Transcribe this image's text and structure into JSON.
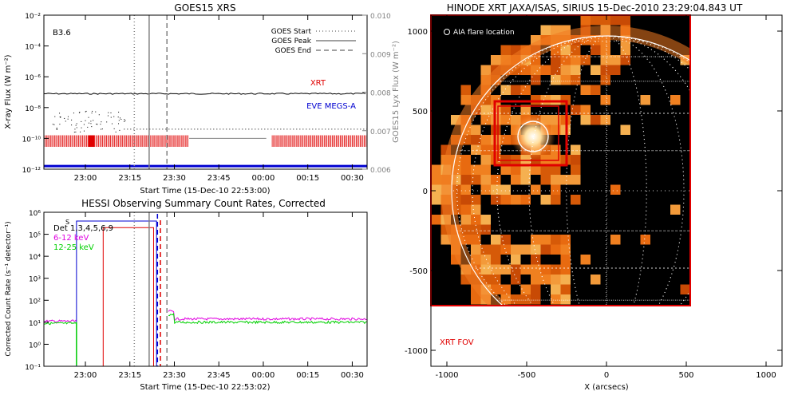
{
  "colors": {
    "axis": "#000000",
    "goes_line": "#808080",
    "xrt": "#e00000",
    "eve": "#0000d0",
    "magenta": "#e000e0",
    "green": "#00d000",
    "blue": "#0000d0",
    "dotgrid": "#ffffff"
  },
  "chart_data": [
    {
      "type": "line",
      "title": "GOES15 XRS",
      "xlabel": "Start Time (15-Dec-10 22:53:00)",
      "ylabel": "X-ray Flux (W m⁻²)",
      "y2label": "GOES15 Lyx Flux (W m⁻²)",
      "class_label": "B3.6",
      "x_ticks": [
        "23:00",
        "23:15",
        "23:30",
        "23:45",
        "00:00",
        "00:15",
        "00:30"
      ],
      "y_ticks": [
        "10⁻²",
        "10⁻⁴",
        "10⁻⁶",
        "10⁻⁸",
        "10⁻¹⁰",
        "10⁻¹²"
      ],
      "y2_ticks": [
        "0.010",
        "0.009",
        "0.008",
        "0.007",
        "0.006"
      ],
      "ylim_log": [
        -12,
        -2
      ],
      "y2lim": [
        0.006,
        0.01
      ],
      "xrange_minutes": [
        -7,
        102
      ],
      "legend": [
        {
          "label": "GOES Start",
          "style": "dotted"
        },
        {
          "label": "GOES Peak",
          "style": "solid"
        },
        {
          "label": "GOES End",
          "style": "dashed"
        }
      ],
      "markers": {
        "start": 23.5,
        "peak": 28.5,
        "end": 34.5
      },
      "series_labels": {
        "xrt": "XRT",
        "eve": "EVE MEGS-A"
      },
      "series": [
        {
          "name": "GOES long channel",
          "log_value": -7.1
        },
        {
          "name": "GOES short channel",
          "log_value": -9.4
        },
        {
          "name": "Lyx flux",
          "value": 0.0068
        },
        {
          "name": "EVE MEGS-A",
          "log_value": -11.8
        }
      ]
    },
    {
      "type": "line",
      "title": "HESSI Observing Summary Count Rates, Corrected",
      "xlabel": "Start Time (15-Dec-10 22:53:02)",
      "ylabel": "Corrected Count Rate (s⁻¹ detector⁻¹)",
      "x_ticks": [
        "23:00",
        "23:15",
        "23:30",
        "23:45",
        "00:00",
        "00:15",
        "00:30"
      ],
      "y_ticks": [
        "10⁶",
        "10⁵",
        "10⁴",
        "10³",
        "10²",
        "10¹",
        "10⁰",
        "10⁻¹"
      ],
      "ylim_log": [
        -1,
        6
      ],
      "xrange_minutes": [
        -7,
        102
      ],
      "legend": [
        {
          "label": "Det 1,3,4,5,6,9",
          "color": "black"
        },
        {
          "label": "6-12 keV",
          "color": "magenta"
        },
        {
          "label": "12-25 keV",
          "color": "green"
        }
      ],
      "state_flag": "S",
      "series": [
        {
          "name": "6-12 keV",
          "log_before": 1.05,
          "log_after": 1.15
        },
        {
          "name": "12-25 keV",
          "log_before": 0.95,
          "log_after": 1.0
        }
      ],
      "attenuator_box_log": 5.3,
      "saa_box_log": 5.6
    },
    {
      "type": "image",
      "title": "HINODE XRT JAXA/ISAS, SIRIUS 15-Dec-2010 23:29:04.843 UT",
      "xlabel": "X (arcsecs)",
      "x_ticks": [
        "-1000",
        "-500",
        "0",
        "500",
        "1000"
      ],
      "y_ticks": [
        "1000",
        "500",
        "0",
        "-500",
        "-1000"
      ],
      "xlim": [
        -1100,
        1100
      ],
      "ylim": [
        -1100,
        1100
      ],
      "aia_label": "AIA flare location",
      "fov_label": "XRT FOV",
      "flare_location": [
        -460,
        340
      ]
    }
  ]
}
